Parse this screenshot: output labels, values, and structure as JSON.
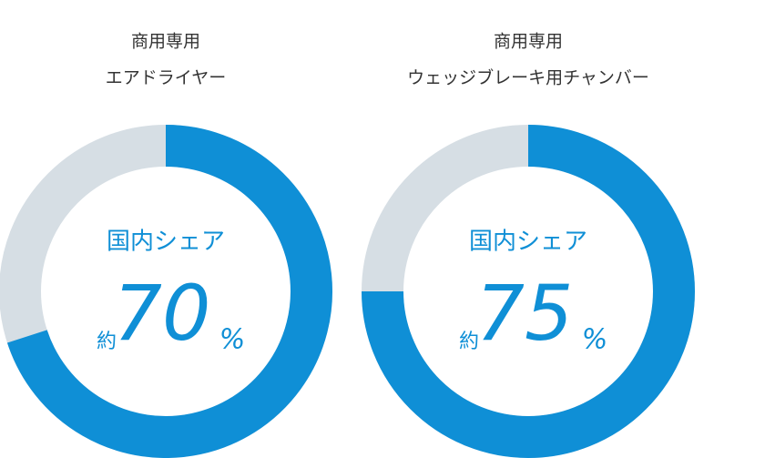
{
  "chart_data": [
    {
      "type": "pie",
      "title": "商用専用",
      "subtitle": "エアドライヤー",
      "center_label": "国内シェア",
      "prefix_label": "約",
      "values": [
        70
      ],
      "unit_label": "%",
      "color": "#0f8fd6",
      "track_color": "#d6dee4"
    },
    {
      "type": "pie",
      "title": "商用専用",
      "subtitle": "ウェッジブレーキ用チャンバー",
      "center_label": "国内シェア",
      "prefix_label": "約",
      "values": [
        75
      ],
      "unit_label": "%",
      "color": "#0f8fd6",
      "track_color": "#d6dee4"
    }
  ]
}
